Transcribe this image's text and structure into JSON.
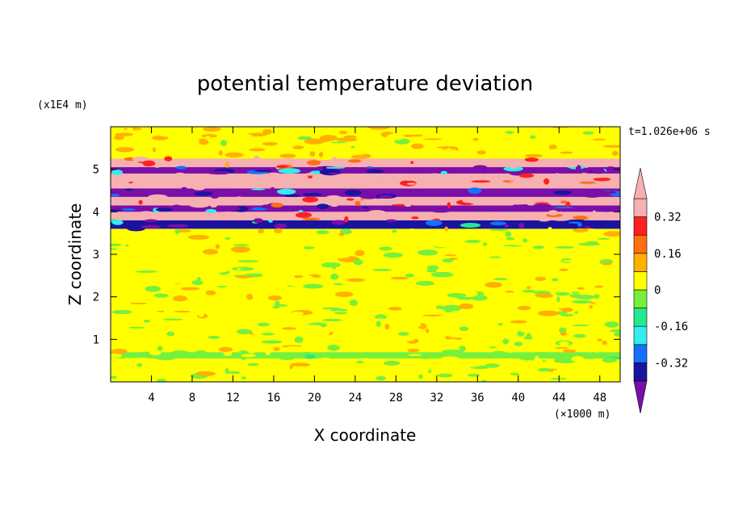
{
  "chart_data": {
    "type": "heatmap",
    "title": "potential temperature deviation",
    "xlabel": "X coordinate",
    "ylabel": "Z coordinate",
    "x_unit_label": "(×1000 m)",
    "y_unit_label": "(x1E4 m)",
    "time_label": "t=1.026e+06 s",
    "xlim": [
      0,
      50
    ],
    "ylim": [
      0,
      6
    ],
    "x_ticks": [
      "4",
      "8",
      "12",
      "16",
      "20",
      "24",
      "28",
      "32",
      "36",
      "40",
      "44",
      "48"
    ],
    "y_ticks": [
      "1",
      "2",
      "3",
      "4",
      "5"
    ],
    "colorbar": {
      "levels": [
        -0.4,
        -0.32,
        -0.24,
        -0.16,
        -0.08,
        0,
        0.08,
        0.16,
        0.24,
        0.32,
        0.4
      ],
      "tick_labels": [
        "0.32",
        "0.16",
        "0",
        "-0.16",
        "-0.32"
      ],
      "tick_values": [
        0.32,
        0.16,
        0,
        -0.16,
        -0.32
      ],
      "colors": [
        "#7a0ea8",
        "#1a13a0",
        "#1470ff",
        "#33ecec",
        "#22e890",
        "#77f03c",
        "#ffff00",
        "#ffb000",
        "#ff6e10",
        "#ff2020",
        "#f6b0b0"
      ],
      "extend": "both"
    },
    "bands": [
      {
        "z": [
          0.0,
          0.55
        ],
        "value": 0.02
      },
      {
        "z": [
          0.55,
          0.7
        ],
        "value": -0.03
      },
      {
        "z": [
          0.7,
          3.6
        ],
        "value": 0.03
      },
      {
        "z": [
          3.6,
          3.8
        ],
        "value": -0.35
      },
      {
        "z": [
          3.8,
          4.0
        ],
        "value": 0.45
      },
      {
        "z": [
          4.0,
          4.15
        ],
        "value": -0.42
      },
      {
        "z": [
          4.15,
          4.35
        ],
        "value": 0.45
      },
      {
        "z": [
          4.35,
          4.55
        ],
        "value": -0.42
      },
      {
        "z": [
          4.55,
          4.9
        ],
        "value": 0.45
      },
      {
        "z": [
          4.9,
          5.05
        ],
        "value": -0.42
      },
      {
        "z": [
          5.05,
          5.25
        ],
        "value": 0.4
      },
      {
        "z": [
          5.25,
          6.0
        ],
        "value": 0.06
      }
    ]
  }
}
